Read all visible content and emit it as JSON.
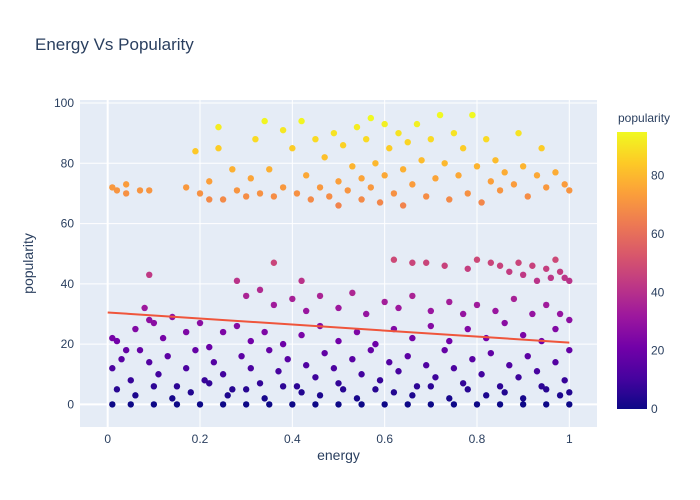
{
  "chart_data": {
    "type": "scatter",
    "title": "Energy Vs Popularity",
    "xlabel": "energy",
    "ylabel": "popularity",
    "xlim": [
      -0.06,
      1.06
    ],
    "ylim": [
      -7.5,
      101
    ],
    "x_ticks": [
      0,
      0.2,
      0.4,
      0.6,
      0.8,
      1
    ],
    "x_tick_labels": [
      "0",
      "0.2",
      "0.4",
      "0.6",
      "0.8",
      "1"
    ],
    "y_ticks": [
      0,
      20,
      40,
      60,
      80,
      100
    ],
    "y_tick_labels": [
      "0",
      "20",
      "40",
      "60",
      "80",
      "100"
    ],
    "grid": true,
    "colorbar": {
      "title": "popularity",
      "min": 0,
      "max": 95,
      "ticks": [
        0,
        20,
        40,
        60,
        80
      ],
      "tick_labels": [
        "0",
        "20",
        "40",
        "60",
        "80"
      ],
      "colorscale": [
        "#0d0887",
        "#46039f",
        "#7201a8",
        "#9c179e",
        "#bd3786",
        "#d8576b",
        "#ed7953",
        "#fb9f3a",
        "#fdca26",
        "#f0f921"
      ]
    },
    "trendline": {
      "color": "#ef553b",
      "points": [
        [
          0.0,
          30.5
        ],
        [
          1.0,
          20.5
        ]
      ]
    },
    "points": [
      [
        0.01,
        72
      ],
      [
        0.02,
        71
      ],
      [
        0.04,
        73
      ],
      [
        0.04,
        70
      ],
      [
        0.07,
        71
      ],
      [
        0.09,
        71
      ],
      [
        0.17,
        72
      ],
      [
        0.19,
        84
      ],
      [
        0.2,
        70
      ],
      [
        0.22,
        74
      ],
      [
        0.22,
        68
      ],
      [
        0.24,
        92
      ],
      [
        0.24,
        85
      ],
      [
        0.25,
        68
      ],
      [
        0.27,
        78
      ],
      [
        0.28,
        71
      ],
      [
        0.3,
        69
      ],
      [
        0.31,
        75
      ],
      [
        0.32,
        88
      ],
      [
        0.33,
        70
      ],
      [
        0.34,
        94
      ],
      [
        0.35,
        78
      ],
      [
        0.36,
        69
      ],
      [
        0.38,
        91
      ],
      [
        0.38,
        72
      ],
      [
        0.4,
        85
      ],
      [
        0.41,
        70
      ],
      [
        0.42,
        94
      ],
      [
        0.43,
        76
      ],
      [
        0.44,
        68
      ],
      [
        0.45,
        88
      ],
      [
        0.46,
        72
      ],
      [
        0.47,
        82
      ],
      [
        0.48,
        69
      ],
      [
        0.49,
        90
      ],
      [
        0.5,
        74
      ],
      [
        0.5,
        66
      ],
      [
        0.51,
        86
      ],
      [
        0.52,
        71
      ],
      [
        0.53,
        79
      ],
      [
        0.54,
        92
      ],
      [
        0.55,
        75
      ],
      [
        0.55,
        68
      ],
      [
        0.56,
        88
      ],
      [
        0.57,
        95
      ],
      [
        0.57,
        72
      ],
      [
        0.58,
        80
      ],
      [
        0.59,
        67
      ],
      [
        0.6,
        93
      ],
      [
        0.6,
        76
      ],
      [
        0.61,
        85
      ],
      [
        0.62,
        70
      ],
      [
        0.63,
        90
      ],
      [
        0.64,
        78
      ],
      [
        0.64,
        66
      ],
      [
        0.65,
        87
      ],
      [
        0.66,
        73
      ],
      [
        0.67,
        93
      ],
      [
        0.68,
        81
      ],
      [
        0.69,
        69
      ],
      [
        0.7,
        88
      ],
      [
        0.71,
        75
      ],
      [
        0.72,
        96
      ],
      [
        0.73,
        80
      ],
      [
        0.74,
        68
      ],
      [
        0.75,
        90
      ],
      [
        0.76,
        76
      ],
      [
        0.77,
        85
      ],
      [
        0.78,
        70
      ],
      [
        0.79,
        96
      ],
      [
        0.8,
        79
      ],
      [
        0.81,
        67
      ],
      [
        0.82,
        88
      ],
      [
        0.83,
        74
      ],
      [
        0.84,
        81
      ],
      [
        0.85,
        71
      ],
      [
        0.86,
        77
      ],
      [
        0.88,
        73
      ],
      [
        0.89,
        90
      ],
      [
        0.9,
        79
      ],
      [
        0.91,
        69
      ],
      [
        0.93,
        76
      ],
      [
        0.94,
        85
      ],
      [
        0.95,
        72
      ],
      [
        0.97,
        77
      ],
      [
        0.99,
        73
      ],
      [
        1.0,
        71
      ],
      [
        0.36,
        47
      ],
      [
        0.42,
        41
      ],
      [
        0.62,
        48
      ],
      [
        0.66,
        47
      ],
      [
        0.69,
        47
      ],
      [
        0.73,
        46
      ],
      [
        0.78,
        45
      ],
      [
        0.8,
        48
      ],
      [
        0.83,
        47
      ],
      [
        0.85,
        46
      ],
      [
        0.87,
        44
      ],
      [
        0.89,
        47
      ],
      [
        0.9,
        43
      ],
      [
        0.92,
        46
      ],
      [
        0.93,
        41
      ],
      [
        0.95,
        45
      ],
      [
        0.96,
        42
      ],
      [
        0.97,
        48
      ],
      [
        0.98,
        44
      ],
      [
        0.99,
        42
      ],
      [
        1.0,
        41
      ],
      [
        0.09,
        43
      ],
      [
        0.28,
        41
      ],
      [
        0.3,
        36
      ],
      [
        0.33,
        38
      ],
      [
        0.36,
        33
      ],
      [
        0.4,
        35
      ],
      [
        0.43,
        31
      ],
      [
        0.46,
        36
      ],
      [
        0.5,
        32
      ],
      [
        0.53,
        37
      ],
      [
        0.56,
        30
      ],
      [
        0.6,
        34
      ],
      [
        0.63,
        32
      ],
      [
        0.66,
        36
      ],
      [
        0.7,
        31
      ],
      [
        0.74,
        34
      ],
      [
        0.77,
        30
      ],
      [
        0.8,
        33
      ],
      [
        0.84,
        31
      ],
      [
        0.88,
        35
      ],
      [
        0.92,
        30
      ],
      [
        0.95,
        33
      ],
      [
        0.98,
        30
      ],
      [
        0.01,
        22
      ],
      [
        0.02,
        21
      ],
      [
        0.04,
        18
      ],
      [
        0.06,
        25
      ],
      [
        0.08,
        32
      ],
      [
        0.09,
        28
      ],
      [
        0.1,
        27
      ],
      [
        0.12,
        22
      ],
      [
        0.14,
        29
      ],
      [
        0.17,
        24
      ],
      [
        0.2,
        27
      ],
      [
        0.22,
        19
      ],
      [
        0.25,
        24
      ],
      [
        0.28,
        26
      ],
      [
        0.31,
        21
      ],
      [
        0.34,
        24
      ],
      [
        0.38,
        20
      ],
      [
        0.42,
        23
      ],
      [
        0.46,
        26
      ],
      [
        0.5,
        21
      ],
      [
        0.54,
        24
      ],
      [
        0.58,
        20
      ],
      [
        0.62,
        25
      ],
      [
        0.66,
        22
      ],
      [
        0.7,
        26
      ],
      [
        0.74,
        21
      ],
      [
        0.78,
        25
      ],
      [
        0.82,
        22
      ],
      [
        0.86,
        27
      ],
      [
        0.9,
        23
      ],
      [
        0.94,
        21
      ],
      [
        0.97,
        25
      ],
      [
        1.0,
        28
      ],
      [
        0.01,
        12
      ],
      [
        0.03,
        15
      ],
      [
        0.05,
        8
      ],
      [
        0.07,
        18
      ],
      [
        0.09,
        14
      ],
      [
        0.11,
        10
      ],
      [
        0.13,
        16
      ],
      [
        0.15,
        6
      ],
      [
        0.17,
        12
      ],
      [
        0.19,
        18
      ],
      [
        0.21,
        8
      ],
      [
        0.23,
        14
      ],
      [
        0.25,
        10
      ],
      [
        0.27,
        5
      ],
      [
        0.29,
        16
      ],
      [
        0.31,
        12
      ],
      [
        0.33,
        7
      ],
      [
        0.35,
        18
      ],
      [
        0.37,
        11
      ],
      [
        0.39,
        15
      ],
      [
        0.41,
        6
      ],
      [
        0.43,
        13
      ],
      [
        0.45,
        9
      ],
      [
        0.47,
        17
      ],
      [
        0.49,
        12
      ],
      [
        0.51,
        5
      ],
      [
        0.53,
        15
      ],
      [
        0.55,
        10
      ],
      [
        0.57,
        18
      ],
      [
        0.59,
        8
      ],
      [
        0.61,
        14
      ],
      [
        0.63,
        11
      ],
      [
        0.65,
        16
      ],
      [
        0.67,
        6
      ],
      [
        0.69,
        13
      ],
      [
        0.71,
        9
      ],
      [
        0.73,
        18
      ],
      [
        0.75,
        12
      ],
      [
        0.77,
        7
      ],
      [
        0.79,
        15
      ],
      [
        0.81,
        10
      ],
      [
        0.83,
        17
      ],
      [
        0.85,
        6
      ],
      [
        0.87,
        13
      ],
      [
        0.89,
        9
      ],
      [
        0.91,
        16
      ],
      [
        0.93,
        11
      ],
      [
        0.95,
        5
      ],
      [
        0.97,
        14
      ],
      [
        0.99,
        8
      ],
      [
        1.0,
        18
      ],
      [
        0.02,
        5
      ],
      [
        0.06,
        3
      ],
      [
        0.1,
        6
      ],
      [
        0.14,
        2
      ],
      [
        0.18,
        4
      ],
      [
        0.22,
        7
      ],
      [
        0.26,
        3
      ],
      [
        0.3,
        5
      ],
      [
        0.34,
        2
      ],
      [
        0.38,
        6
      ],
      [
        0.42,
        4
      ],
      [
        0.46,
        3
      ],
      [
        0.5,
        7
      ],
      [
        0.54,
        2
      ],
      [
        0.58,
        5
      ],
      [
        0.62,
        4
      ],
      [
        0.66,
        3
      ],
      [
        0.7,
        6
      ],
      [
        0.74,
        2
      ],
      [
        0.78,
        5
      ],
      [
        0.82,
        3
      ],
      [
        0.86,
        4
      ],
      [
        0.9,
        2
      ],
      [
        0.94,
        6
      ],
      [
        0.98,
        3
      ],
      [
        1.0,
        4
      ],
      [
        0.01,
        0
      ],
      [
        0.05,
        0
      ],
      [
        0.1,
        0
      ],
      [
        0.15,
        0
      ],
      [
        0.2,
        0
      ],
      [
        0.25,
        0
      ],
      [
        0.3,
        0
      ],
      [
        0.35,
        0
      ],
      [
        0.4,
        0
      ],
      [
        0.45,
        0
      ],
      [
        0.5,
        0
      ],
      [
        0.55,
        0
      ],
      [
        0.6,
        0
      ],
      [
        0.65,
        0
      ],
      [
        0.7,
        0
      ],
      [
        0.75,
        0
      ],
      [
        0.8,
        0
      ],
      [
        0.85,
        0
      ],
      [
        0.9,
        0
      ],
      [
        0.95,
        0
      ],
      [
        1.0,
        0
      ]
    ]
  }
}
